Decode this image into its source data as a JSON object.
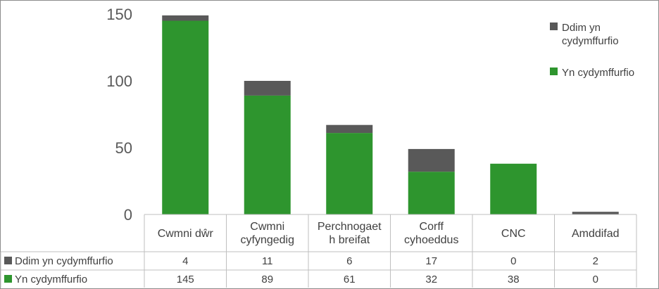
{
  "chart_data": {
    "type": "bar",
    "stacked": true,
    "categories": [
      "Cwmni dŵr",
      "Cwmni cyfyngedig",
      "Perchnogaeth breifat",
      "Corff cyhoeddus",
      "CNC",
      "Amddifad"
    ],
    "category_lines": [
      [
        "Cwmni dŵr"
      ],
      [
        "Cwmni",
        "cyfyngedig"
      ],
      [
        "Perchnogaet",
        "h breifat"
      ],
      [
        "Corff",
        "cyhoeddus"
      ],
      [
        "CNC"
      ],
      [
        "Amddifad"
      ]
    ],
    "series": [
      {
        "name": "Yn cydymffurfio",
        "color": "#2e952e",
        "values": [
          145,
          89,
          61,
          32,
          38,
          0
        ]
      },
      {
        "name": "Ddim yn cydymffurfio",
        "color": "#595959",
        "values": [
          4,
          11,
          6,
          17,
          0,
          2
        ]
      }
    ],
    "yticks": [
      0,
      50,
      100,
      150
    ],
    "ylim": [
      0,
      150
    ],
    "legend": {
      "position": "right",
      "entries": [
        {
          "lines": [
            "Ddim yn",
            "cydymffurfio"
          ],
          "color": "#595959"
        },
        {
          "lines": [
            "Yn cydymffurfio"
          ],
          "color": "#2e952e"
        }
      ]
    },
    "data_table": {
      "rows": [
        {
          "label": "Ddim yn cydymffurfio",
          "color": "#595959",
          "values": [
            "4",
            "11",
            "6",
            "17",
            "0",
            "2"
          ]
        },
        {
          "label": "Yn cydymffurfio",
          "color": "#2e952e",
          "values": [
            "145",
            "89",
            "61",
            "32",
            "38",
            "0"
          ]
        }
      ]
    }
  }
}
